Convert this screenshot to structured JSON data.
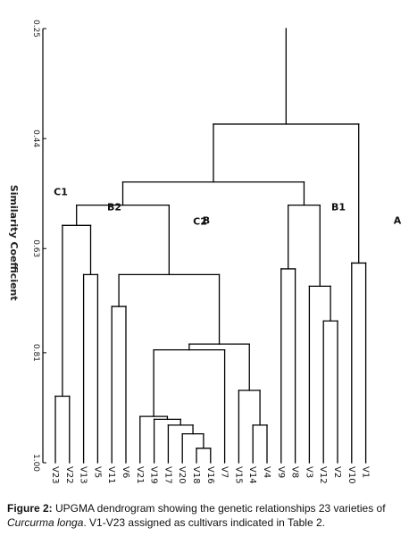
{
  "axis": {
    "title": "Similarity Coefficient",
    "ticks": [
      "0.25",
      "0.44",
      "0.63",
      "0.81",
      "1.00"
    ]
  },
  "tree": {
    "leaves": [
      "V23",
      "V22",
      "V13",
      "V5",
      "V11",
      "V6",
      "V21",
      "V19",
      "V17",
      "V20",
      "V18",
      "V16",
      "V7",
      "V15",
      "V14",
      "V4",
      "V9",
      "V8",
      "V3",
      "V12",
      "V2",
      "V10",
      "V1"
    ],
    "clusters": [
      {
        "label": "A",
        "height": 0.68
      },
      {
        "label": "B",
        "height": 0.68
      },
      {
        "label": "B1",
        "height": 0.57
      },
      {
        "label": "B2",
        "height": 0.57
      },
      {
        "label": "C1",
        "height": 0.535
      },
      {
        "label": "C2",
        "height": 0.51
      }
    ],
    "merges": [
      {
        "a": "V18",
        "b": "V16",
        "h": 0.975
      },
      {
        "a": "V20",
        "b": "V18+V16",
        "h": 0.95
      },
      {
        "a": "V17",
        "b": "V20..V16",
        "h": 0.935
      },
      {
        "a": "V19",
        "b": "V17..V16",
        "h": 0.925
      },
      {
        "a": "V21",
        "b": "V19..V16",
        "h": 0.92
      },
      {
        "a": "V21..V16",
        "b": "V7",
        "h": 0.805
      },
      {
        "a": "V14",
        "b": "V4",
        "h": 0.935
      },
      {
        "a": "V15",
        "b": "V14+V4",
        "h": 0.875
      },
      {
        "a": "V21..V7",
        "b": "V15..V4",
        "h": 0.795
      },
      {
        "a": "V11",
        "b": "V6",
        "h": 0.73
      },
      {
        "a": "V11+V6",
        "b": "V21..V4",
        "h": 0.675
      },
      {
        "a": "V13",
        "b": "V5",
        "h": 0.675
      },
      {
        "a": "V23",
        "b": "V22",
        "h": 0.885
      },
      {
        "a": "V23+V22",
        "b": "V13+V5",
        "h": 0.59
      },
      {
        "a": "C1",
        "b": "C2",
        "h": 0.555
      },
      {
        "a": "V9",
        "b": "V8",
        "h": 0.665
      },
      {
        "a": "V12",
        "b": "V2",
        "h": 0.755
      },
      {
        "a": "V3",
        "b": "V12+V2",
        "h": 0.695
      },
      {
        "a": "V9+V8",
        "b": "V3..V2",
        "h": 0.555
      },
      {
        "a": "B1",
        "b": "B2",
        "h": 0.515
      },
      {
        "a": "V10",
        "b": "V1",
        "h": 0.655
      },
      {
        "a": "A",
        "b": "B",
        "h": 0.415
      },
      {
        "a": "root",
        "b": "root",
        "h": 0.25
      }
    ]
  },
  "caption": {
    "figure_no": "Figure 2:",
    "text_before_species": " UPGMA dendrogram showing the genetic relationships 23 varieties of ",
    "species": "Curcurma longa",
    "text_after_species": ". V1-V23 assigned as cultivars indicated in Table 2."
  }
}
